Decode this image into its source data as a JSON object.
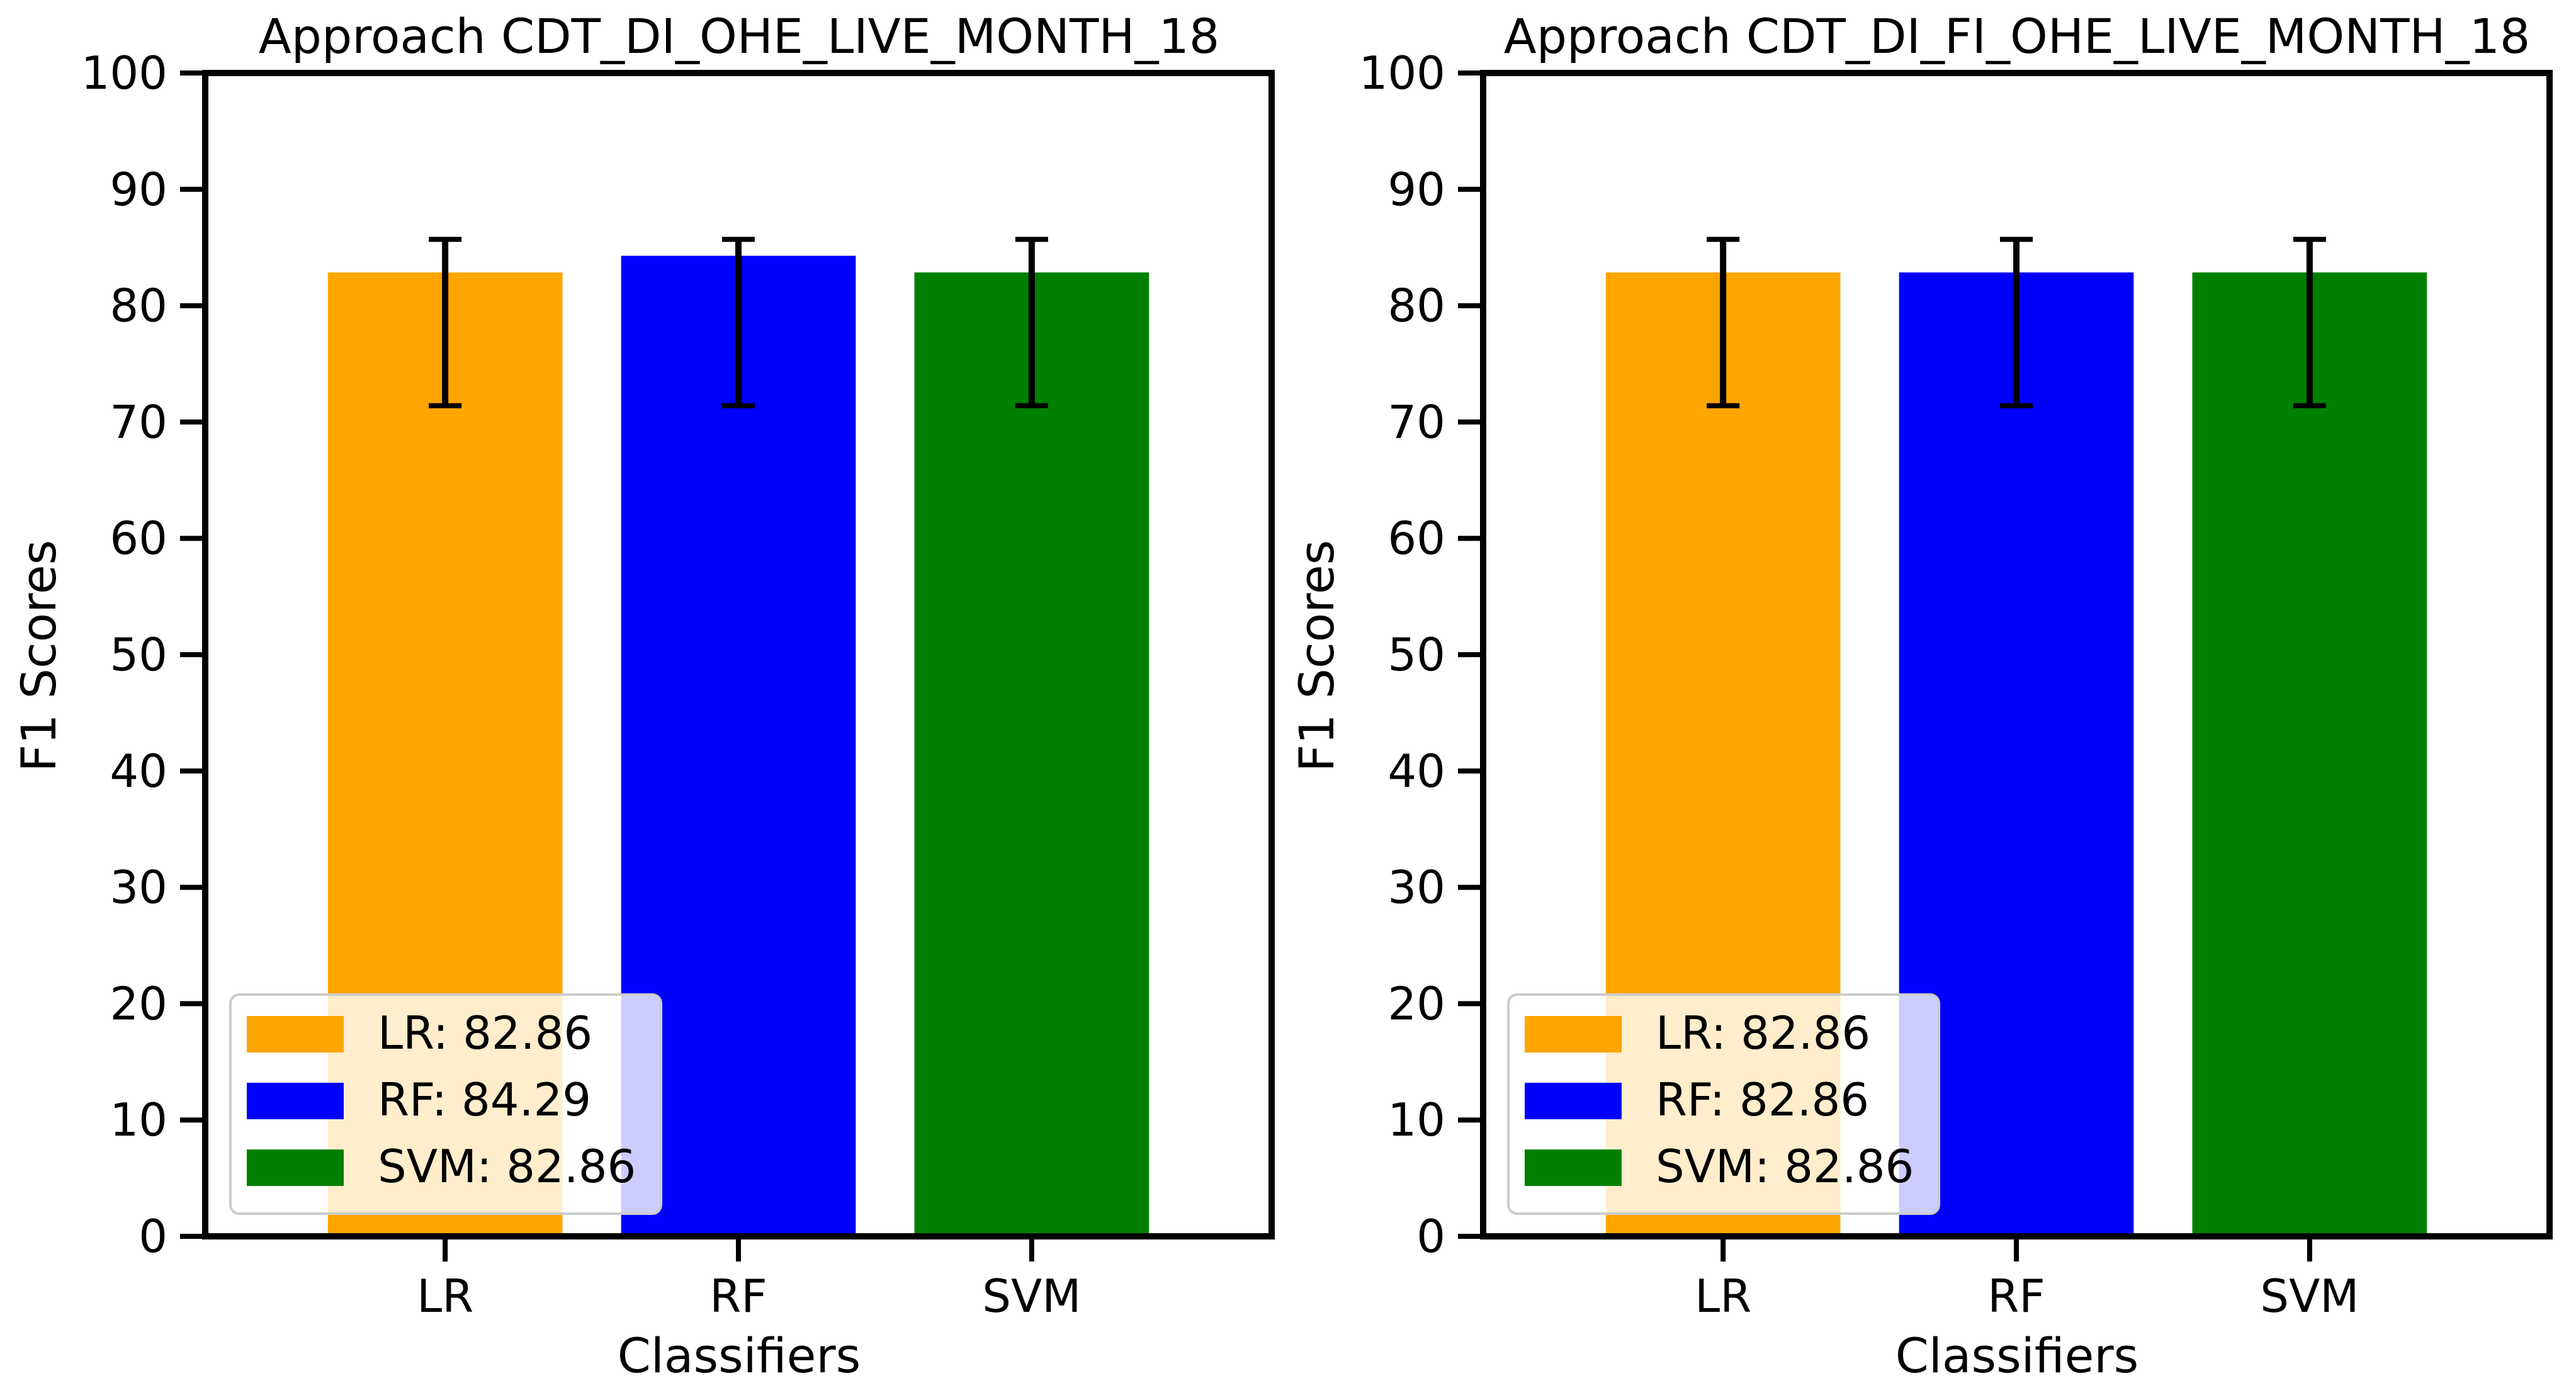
{
  "chart_data": [
    {
      "type": "bar",
      "title": "Approach CDT_DI_OHE_LIVE_MONTH_18",
      "xlabel": "Classifiers",
      "ylabel": "F1 Scores",
      "categories": [
        "LR",
        "RF",
        "SVM"
      ],
      "values": [
        82.86,
        84.29,
        82.86
      ],
      "errors": {
        "lower": [
          71.4,
          71.4,
          71.4
        ],
        "upper": [
          85.7,
          85.7,
          85.7
        ]
      },
      "colors": [
        "#ffa500",
        "#0000ff",
        "#008000"
      ],
      "ylim": [
        0,
        100
      ],
      "yticks": [
        "0",
        "10",
        "20",
        "30",
        "40",
        "50",
        "60",
        "70",
        "80",
        "90",
        "100"
      ],
      "grid": false,
      "legend": {
        "position": "lower-left",
        "entries": [
          "LR: 82.86",
          "RF: 84.29",
          "SVM: 82.86"
        ]
      }
    },
    {
      "type": "bar",
      "title": "Approach CDT_DI_FI_OHE_LIVE_MONTH_18",
      "xlabel": "Classifiers",
      "ylabel": "F1 Scores",
      "categories": [
        "LR",
        "RF",
        "SVM"
      ],
      "values": [
        82.86,
        82.86,
        82.86
      ],
      "errors": {
        "lower": [
          71.4,
          71.4,
          71.4
        ],
        "upper": [
          85.7,
          85.7,
          85.7
        ]
      },
      "colors": [
        "#ffa500",
        "#0000ff",
        "#008000"
      ],
      "ylim": [
        0,
        100
      ],
      "yticks": [
        "0",
        "10",
        "20",
        "30",
        "40",
        "50",
        "60",
        "70",
        "80",
        "90",
        "100"
      ],
      "grid": false,
      "legend": {
        "position": "lower-left",
        "entries": [
          "LR: 82.86",
          "RF: 82.86",
          "SVM: 82.86"
        ]
      }
    }
  ]
}
